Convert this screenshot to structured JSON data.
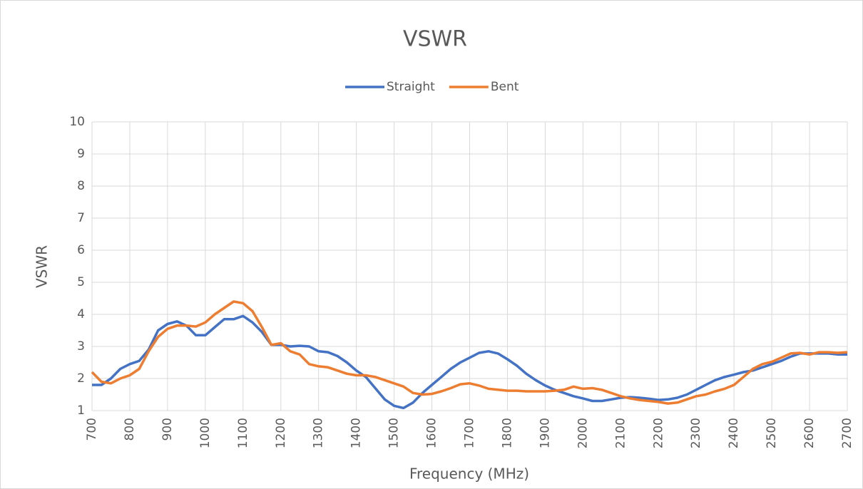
{
  "chart_data": {
    "type": "line",
    "title": "VSWR",
    "xlabel": "Frequency (MHz)",
    "ylabel": "VSWR",
    "x": [
      700,
      725,
      750,
      775,
      800,
      825,
      850,
      875,
      900,
      925,
      950,
      975,
      1000,
      1025,
      1050,
      1075,
      1100,
      1125,
      1150,
      1175,
      1200,
      1225,
      1250,
      1275,
      1300,
      1325,
      1350,
      1375,
      1400,
      1425,
      1450,
      1475,
      1500,
      1525,
      1550,
      1575,
      1600,
      1625,
      1650,
      1675,
      1700,
      1725,
      1750,
      1775,
      1800,
      1825,
      1850,
      1875,
      1900,
      1925,
      1950,
      1975,
      2000,
      2025,
      2050,
      2075,
      2100,
      2125,
      2150,
      2175,
      2200,
      2225,
      2250,
      2275,
      2300,
      2325,
      2350,
      2375,
      2400,
      2425,
      2450,
      2475,
      2500,
      2525,
      2550,
      2575,
      2600,
      2625,
      2650,
      2675,
      2700
    ],
    "series": [
      {
        "name": "Straight",
        "color": "#4472c4",
        "values": [
          1.8,
          1.8,
          2.0,
          2.3,
          2.45,
          2.55,
          2.9,
          3.5,
          3.7,
          3.78,
          3.65,
          3.35,
          3.35,
          3.6,
          3.85,
          3.85,
          3.95,
          3.75,
          3.45,
          3.05,
          3.05,
          3.0,
          3.02,
          3.0,
          2.85,
          2.82,
          2.7,
          2.5,
          2.25,
          2.05,
          1.7,
          1.35,
          1.15,
          1.08,
          1.25,
          1.55,
          1.8,
          2.05,
          2.3,
          2.5,
          2.65,
          2.8,
          2.85,
          2.78,
          2.6,
          2.4,
          2.15,
          1.95,
          1.78,
          1.65,
          1.55,
          1.45,
          1.38,
          1.3,
          1.3,
          1.35,
          1.4,
          1.42,
          1.4,
          1.37,
          1.33,
          1.35,
          1.4,
          1.5,
          1.65,
          1.8,
          1.95,
          2.05,
          2.12,
          2.2,
          2.25,
          2.35,
          2.45,
          2.55,
          2.68,
          2.78,
          2.78,
          2.78,
          2.78,
          2.75,
          2.75
        ]
      },
      {
        "name": "Bent",
        "color": "#ed7d31",
        "values": [
          2.2,
          1.9,
          1.85,
          2.0,
          2.1,
          2.3,
          2.85,
          3.3,
          3.55,
          3.65,
          3.65,
          3.62,
          3.75,
          4.0,
          4.2,
          4.4,
          4.35,
          4.1,
          3.6,
          3.05,
          3.1,
          2.85,
          2.75,
          2.45,
          2.38,
          2.35,
          2.25,
          2.15,
          2.1,
          2.1,
          2.05,
          1.95,
          1.85,
          1.75,
          1.55,
          1.5,
          1.52,
          1.6,
          1.7,
          1.82,
          1.85,
          1.78,
          1.68,
          1.65,
          1.62,
          1.62,
          1.6,
          1.6,
          1.6,
          1.62,
          1.65,
          1.75,
          1.68,
          1.7,
          1.65,
          1.55,
          1.45,
          1.38,
          1.33,
          1.3,
          1.27,
          1.22,
          1.25,
          1.35,
          1.45,
          1.5,
          1.6,
          1.68,
          1.8,
          2.05,
          2.3,
          2.45,
          2.52,
          2.65,
          2.78,
          2.8,
          2.75,
          2.82,
          2.82,
          2.8,
          2.82
        ]
      }
    ],
    "xlim": [
      700,
      2700
    ],
    "xticks": [
      700,
      800,
      900,
      1000,
      1100,
      1200,
      1300,
      1400,
      1500,
      1600,
      1700,
      1800,
      1900,
      2000,
      2100,
      2200,
      2300,
      2400,
      2500,
      2600,
      2700
    ],
    "ylim": [
      1,
      10
    ],
    "yticks": [
      1,
      2,
      3,
      4,
      5,
      6,
      7,
      8,
      9,
      10
    ],
    "grid": true,
    "legend": "top"
  }
}
